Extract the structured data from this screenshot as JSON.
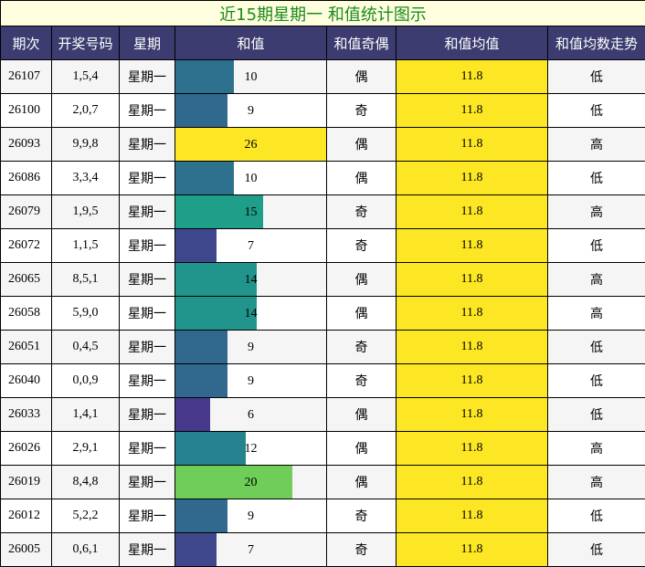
{
  "chart_data": {
    "type": "table",
    "title": "近15期星期一 和值统计图示",
    "columns": [
      "期次",
      "开奖号码",
      "星期",
      "和值",
      "和值奇偶",
      "和值均值",
      "和值均数走势"
    ],
    "sum_axis_max": 26,
    "rows": [
      {
        "issue": "26107",
        "numbers": "1,5,4",
        "weekday": "星期一",
        "sum": 10,
        "parity": "偶",
        "avg": "11.8",
        "trend": "低"
      },
      {
        "issue": "26100",
        "numbers": "2,0,7",
        "weekday": "星期一",
        "sum": 9,
        "parity": "奇",
        "avg": "11.8",
        "trend": "低"
      },
      {
        "issue": "26093",
        "numbers": "9,9,8",
        "weekday": "星期一",
        "sum": 26,
        "parity": "偶",
        "avg": "11.8",
        "trend": "高"
      },
      {
        "issue": "26086",
        "numbers": "3,3,4",
        "weekday": "星期一",
        "sum": 10,
        "parity": "偶",
        "avg": "11.8",
        "trend": "低"
      },
      {
        "issue": "26079",
        "numbers": "1,9,5",
        "weekday": "星期一",
        "sum": 15,
        "parity": "奇",
        "avg": "11.8",
        "trend": "高"
      },
      {
        "issue": "26072",
        "numbers": "1,1,5",
        "weekday": "星期一",
        "sum": 7,
        "parity": "奇",
        "avg": "11.8",
        "trend": "低"
      },
      {
        "issue": "26065",
        "numbers": "8,5,1",
        "weekday": "星期一",
        "sum": 14,
        "parity": "偶",
        "avg": "11.8",
        "trend": "高"
      },
      {
        "issue": "26058",
        "numbers": "5,9,0",
        "weekday": "星期一",
        "sum": 14,
        "parity": "偶",
        "avg": "11.8",
        "trend": "高"
      },
      {
        "issue": "26051",
        "numbers": "0,4,5",
        "weekday": "星期一",
        "sum": 9,
        "parity": "奇",
        "avg": "11.8",
        "trend": "低"
      },
      {
        "issue": "26040",
        "numbers": "0,0,9",
        "weekday": "星期一",
        "sum": 9,
        "parity": "奇",
        "avg": "11.8",
        "trend": "低"
      },
      {
        "issue": "26033",
        "numbers": "1,4,1",
        "weekday": "星期一",
        "sum": 6,
        "parity": "偶",
        "avg": "11.8",
        "trend": "低"
      },
      {
        "issue": "26026",
        "numbers": "2,9,1",
        "weekday": "星期一",
        "sum": 12,
        "parity": "偶",
        "avg": "11.8",
        "trend": "高"
      },
      {
        "issue": "26019",
        "numbers": "8,4,8",
        "weekday": "星期一",
        "sum": 20,
        "parity": "偶",
        "avg": "11.8",
        "trend": "高"
      },
      {
        "issue": "26012",
        "numbers": "5,2,2",
        "weekday": "星期一",
        "sum": 9,
        "parity": "奇",
        "avg": "11.8",
        "trend": "低"
      },
      {
        "issue": "26005",
        "numbers": "0,6,1",
        "weekday": "星期一",
        "sum": 7,
        "parity": "奇",
        "avg": "11.8",
        "trend": "低"
      }
    ]
  }
}
